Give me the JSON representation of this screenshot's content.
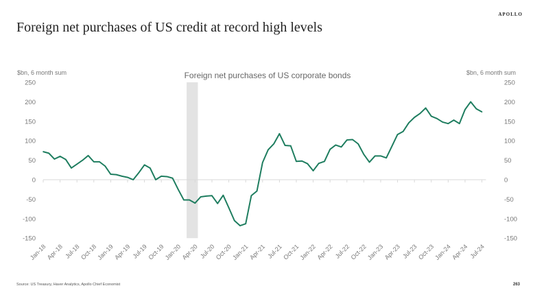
{
  "header": {
    "title": "Foreign net purchases of US credit at record high levels",
    "logo": "APOLLO"
  },
  "footer": {
    "source": "Source: US Treasury, Haver Analytics, Apollo Chief Economist",
    "page_number": "263"
  },
  "chart_data": {
    "type": "line",
    "title": "Foreign net purchases of US corporate bonds",
    "ylabel_left": "$bn, 6 month sum",
    "ylabel_right": "$bn, 6 month sum",
    "ylim": [
      -150,
      250
    ],
    "yticks": [
      250,
      200,
      150,
      100,
      50,
      0,
      -50,
      -100,
      -150
    ],
    "xtick_labels": [
      "Jan-18",
      "Apr-18",
      "Jul-18",
      "Oct-18",
      "Jan-19",
      "Apr-19",
      "Jul-19",
      "Oct-19",
      "Jan-20",
      "Apr-20",
      "Jul-20",
      "Oct-20",
      "Jan-21",
      "Apr-21",
      "Jul-21",
      "Oct-21",
      "Jan-22",
      "Apr-22",
      "Jul-22",
      "Oct-22",
      "Jan-23",
      "Apr-23",
      "Jul-23",
      "Oct-23",
      "Jan-24",
      "Apr-24",
      "Jul-24"
    ],
    "x_start": "Jan-18",
    "x_frequency": "monthly",
    "shaded_period": [
      "Mar-20",
      "Apr-20"
    ],
    "grid": false,
    "line_color": "#1e7d5f",
    "shade_color": "#e3e3e3",
    "values": [
      72,
      68,
      53,
      60,
      52,
      30,
      40,
      50,
      62,
      46,
      46,
      35,
      14,
      13,
      9,
      6,
      0,
      18,
      38,
      30,
      0,
      9,
      8,
      4,
      -25,
      -52,
      -52,
      -60,
      -44,
      -42,
      -41,
      -61,
      -40,
      -72,
      -105,
      -118,
      -113,
      -41,
      -29,
      44,
      77,
      92,
      118,
      88,
      87,
      47,
      48,
      41,
      23,
      42,
      47,
      78,
      89,
      84,
      102,
      103,
      92,
      65,
      45,
      61,
      61,
      56,
      86,
      116,
      124,
      146,
      160,
      170,
      184,
      163,
      157,
      148,
      144,
      153,
      144,
      180,
      200,
      182,
      174
    ]
  }
}
